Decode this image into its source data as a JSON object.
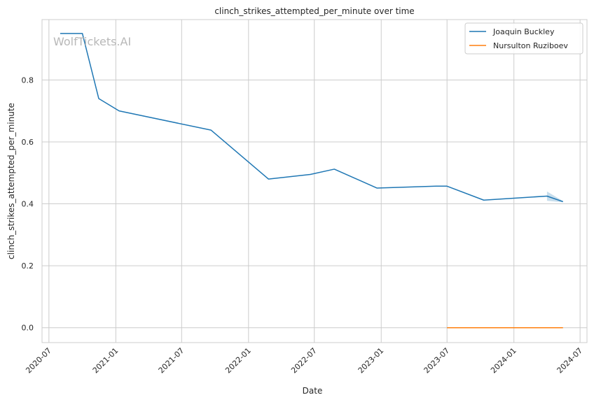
{
  "chart_data": {
    "type": "line",
    "title": "clinch_strikes_attempted_per_minute over time",
    "xlabel": "Date",
    "ylabel": "clinch_strikes_attempted_per_minute",
    "watermark": "WolfTickets.AI",
    "x_ticks": [
      "2020-07",
      "2021-01",
      "2021-07",
      "2022-01",
      "2022-07",
      "2023-01",
      "2023-07",
      "2024-01",
      "2024-07"
    ],
    "y_ticks": [
      "0.0",
      "0.2",
      "0.4",
      "0.6",
      "0.8"
    ],
    "xlim": [
      "2020-06-12",
      "2024-07-20"
    ],
    "ylim": [
      -0.048,
      0.995
    ],
    "grid": true,
    "legend_position": "top-right",
    "series": [
      {
        "name": "Joaquin Buckley",
        "color": "#1f77b4",
        "points": [
          [
            "2020-08-01",
            0.95
          ],
          [
            "2020-10-01",
            0.95
          ],
          [
            "2020-11-15",
            0.74
          ],
          [
            "2021-01-10",
            0.7
          ],
          [
            "2021-09-20",
            0.638
          ],
          [
            "2022-02-25",
            0.48
          ],
          [
            "2022-06-20",
            0.495
          ],
          [
            "2022-08-25",
            0.512
          ],
          [
            "2022-12-20",
            0.451
          ],
          [
            "2023-06-01",
            0.457
          ],
          [
            "2023-07-01",
            0.457
          ],
          [
            "2023-10-10",
            0.412
          ],
          [
            "2024-04-01",
            0.425
          ],
          [
            "2024-05-15",
            0.407
          ]
        ],
        "band": [
          [
            "2024-04-01",
            0.41,
            0.44
          ],
          [
            "2024-05-15",
            0.405,
            0.409
          ]
        ]
      },
      {
        "name": "Nursulton Ruziboev",
        "color": "#ff7f0e",
        "points": [
          [
            "2023-07-01",
            0.0
          ],
          [
            "2024-05-15",
            0.0
          ]
        ]
      }
    ]
  }
}
